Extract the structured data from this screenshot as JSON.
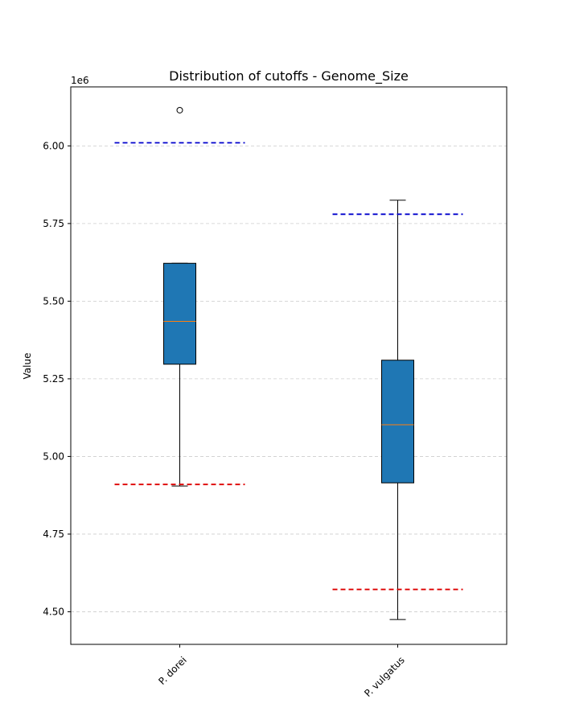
{
  "chart_data": {
    "type": "box",
    "title": "Distribution of cutoffs - Genome_Size",
    "xlabel": "",
    "ylabel": "Value",
    "y_offset_label": "1e6",
    "ylim": [
      4.395,
      6.19
    ],
    "yticks": [
      4.5,
      4.75,
      5.0,
      5.25,
      5.5,
      5.75,
      6.0
    ],
    "ytick_labels": [
      "4.50",
      "4.75",
      "5.00",
      "5.25",
      "5.50",
      "5.75",
      "6.00"
    ],
    "grid": "y-dashed",
    "categories": [
      "P. dorei",
      "P. vulgatus"
    ],
    "boxes": [
      {
        "category": "P. dorei",
        "whisker_low": 4.905,
        "q1": 5.297,
        "median": 5.435,
        "q3": 5.622,
        "whisker_high": 5.622,
        "outliers": [
          6.115
        ],
        "upper_cutoff": 6.01,
        "lower_cutoff": 4.91
      },
      {
        "category": "P. vulgatus",
        "whisker_low": 4.475,
        "q1": 4.915,
        "median": 5.102,
        "q3": 5.31,
        "whisker_high": 5.825,
        "outliers": [],
        "upper_cutoff": 5.78,
        "lower_cutoff": 4.572
      }
    ],
    "colors": {
      "box_fill": "#1f77b4",
      "median": "#ff7f0e",
      "upper_cutoff": "#0000cc",
      "lower_cutoff": "#dd0000",
      "grid": "#cccccc"
    }
  }
}
